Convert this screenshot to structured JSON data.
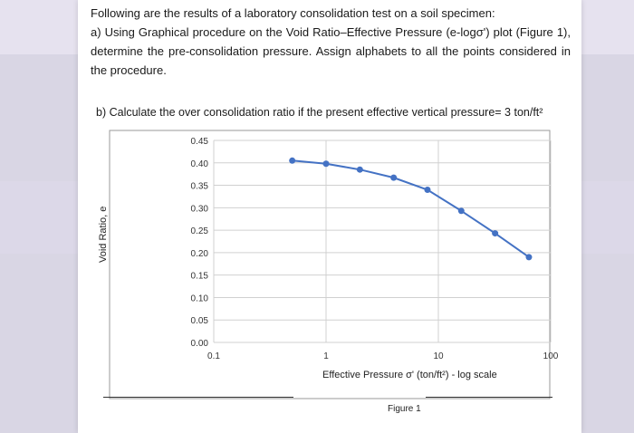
{
  "question": {
    "intro": "Following are the results of a laboratory consolidation test on a soil specimen:",
    "part_a": "a) Using Graphical procedure on the Void Ratio–Effective Pressure (e-logσ') plot (Figure 1), determine the pre-consolidation pressure. Assign alphabets to all the points considered in the procedure.",
    "part_b": "b) Calculate the over consolidation ratio if the present effective vertical pressure= 3 ton/ft²"
  },
  "colors": {
    "series": "#4472c4",
    "grid": "#d0d0d0",
    "text": "#1a1a1a"
  },
  "chart_data": {
    "type": "line",
    "title": "",
    "xlabel": "Effective Pressure σ' (ton/ft²) - log scale",
    "ylabel": "Void Ratio, e",
    "x_scale": "log",
    "xlim": [
      0.1,
      100
    ],
    "ylim": [
      0,
      0.45
    ],
    "x_ticks": [
      "0.1",
      "1",
      "10",
      "100"
    ],
    "y_ticks": [
      "0.00",
      "0.05",
      "0.10",
      "0.15",
      "0.20",
      "0.25",
      "0.30",
      "0.35",
      "0.40",
      "0.45"
    ],
    "grid": true,
    "series": [
      {
        "x": [
          0.5,
          1.0,
          2.0,
          4.0,
          8.0,
          16.0,
          32.0,
          64.0
        ],
        "y": [
          0.405,
          0.398,
          0.385,
          0.367,
          0.34,
          0.293,
          0.243,
          0.19
        ]
      }
    ]
  },
  "figure_caption": "Figure 1"
}
